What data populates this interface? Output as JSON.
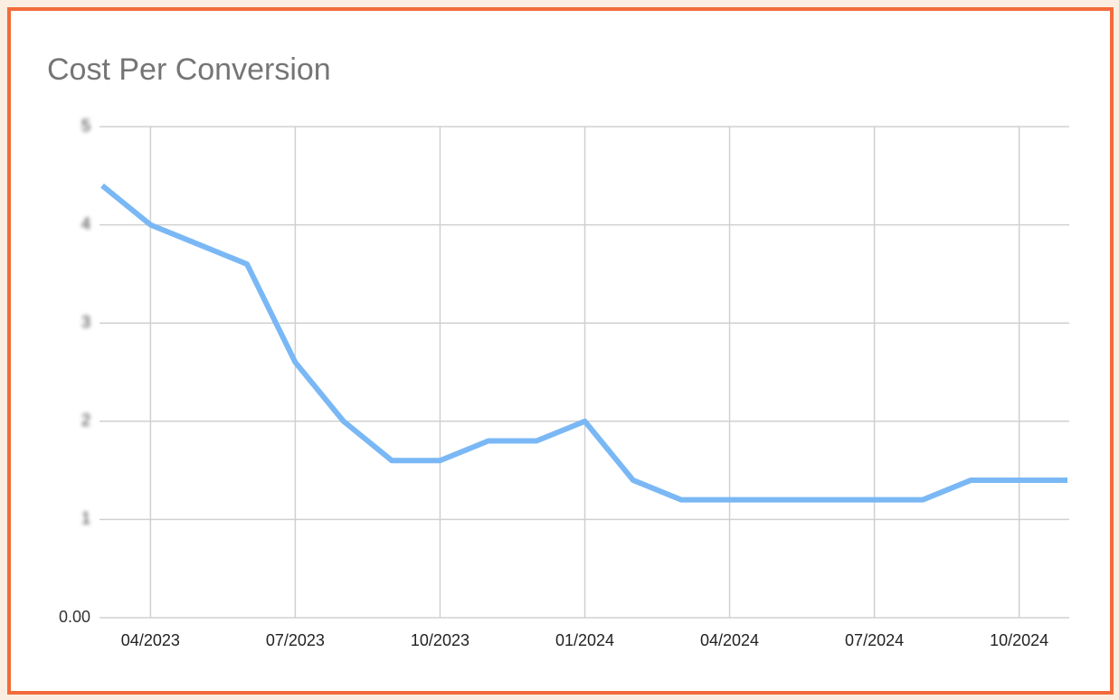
{
  "chart_data": {
    "type": "line",
    "title": "Cost Per Conversion",
    "categories": [
      null,
      "04/2023",
      null,
      null,
      "07/2023",
      null,
      null,
      "10/2023",
      null,
      null,
      "01/2024",
      null,
      null,
      "04/2024",
      null,
      null,
      "07/2024",
      null,
      null,
      "10/2024",
      null
    ],
    "series": [
      {
        "name": "Cost Per Conversion",
        "color": "#7ab8f5",
        "values": [
          4.4,
          4.0,
          3.8,
          3.6,
          2.6,
          2.0,
          1.6,
          1.6,
          1.8,
          1.8,
          2.0,
          1.4,
          1.2,
          1.2,
          1.2,
          1.2,
          1.2,
          1.2,
          1.4,
          1.4,
          1.4
        ]
      }
    ],
    "ylim": [
      0,
      5
    ],
    "yticks": [
      {
        "value": 0,
        "label": "0.00"
      },
      1,
      2,
      3,
      4,
      5
    ],
    "grid": true
  }
}
